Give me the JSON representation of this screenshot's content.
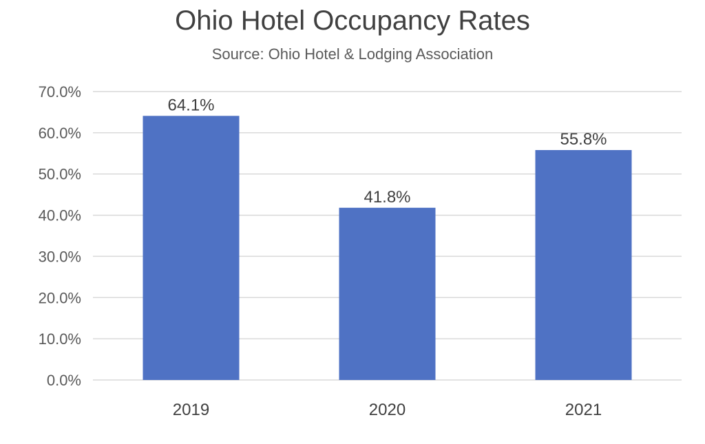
{
  "chart_data": {
    "type": "bar",
    "title": "Ohio Hotel Occupancy Rates",
    "subtitle": "Source: Ohio Hotel & Lodging Association",
    "xlabel": "",
    "ylabel": "",
    "categories": [
      "2019",
      "2020",
      "2021"
    ],
    "values": [
      64.1,
      41.8,
      55.8
    ],
    "data_labels": [
      "64.1%",
      "41.8%",
      "55.8%"
    ],
    "ylim": [
      0,
      70
    ],
    "yticks": [
      0,
      10,
      20,
      30,
      40,
      50,
      60,
      70
    ],
    "ytick_labels": [
      "0.0%",
      "10.0%",
      "20.0%",
      "30.0%",
      "40.0%",
      "50.0%",
      "60.0%",
      "70.0%"
    ],
    "grid": true,
    "legend": "none",
    "bar_color": "#4f72c4",
    "gridline_color": "#d9d9d9"
  }
}
